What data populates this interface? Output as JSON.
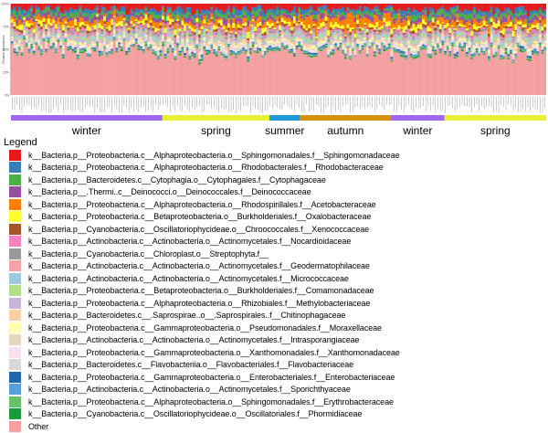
{
  "chart_data": {
    "type": "bar",
    "stacked": true,
    "percent": true,
    "ylabel": "Relative Abundance",
    "yticks": [
      "0%",
      "25%",
      "50%",
      "75%",
      "100%"
    ],
    "seasons": [
      {
        "label": "winter",
        "color": "#a366f0",
        "start": 0,
        "end": 0.283
      },
      {
        "label": "spring",
        "color": "#e8f034",
        "start": 0.283,
        "end": 0.483
      },
      {
        "label": "summer",
        "color": "#1e9bd6",
        "start": 0.483,
        "end": 0.54
      },
      {
        "label": "autumn",
        "color": "#d4920f",
        "start": 0.54,
        "end": 0.71
      },
      {
        "label": "winter",
        "color": "#a366f0",
        "start": 0.71,
        "end": 0.81
      },
      {
        "label": "spring",
        "color": "#e8f034",
        "start": 0.81,
        "end": 1.0
      }
    ],
    "series": [
      {
        "name": "k__Bacteria.p__Proteobacteria.c__Alphaproteobacteria.o__Sphingomonadales.f__Sphingomonadaceae",
        "color": "#e41a1c",
        "mean": 0.06
      },
      {
        "name": "k__Bacteria.p__Proteobacteria.c__Alphaproteobacteria.o__Rhodobacterales.f__Rhodobacteraceae",
        "color": "#377eb8",
        "mean": 0.035
      },
      {
        "name": "k__Bacteria.p__Bacteroidetes.c__Cytophagia.o__Cytophagales.f__Cytophagaceae",
        "color": "#4daf4a",
        "mean": 0.035
      },
      {
        "name": "k__Bacteria.p__.Thermi..c__Deinococci.o__Deinococcales.f__Deinococcaceae",
        "color": "#984ea3",
        "mean": 0.035
      },
      {
        "name": "k__Bacteria.p__Proteobacteria.c__Alphaproteobacteria.o__Rhodospirillales.f__Acetobacteraceae",
        "color": "#ff7f00",
        "mean": 0.04
      },
      {
        "name": "k__Bacteria.p__Proteobacteria.c__Betaproteobacteria.o__Burkholderiales.f__Oxalobacteraceae",
        "color": "#ffff33",
        "mean": 0.035
      },
      {
        "name": "k__Bacteria.p__Cyanobacteria.c__Oscillatoriophycideae.o__Chroococcales.f__Xenococcaceae",
        "color": "#a65628",
        "mean": 0.02
      },
      {
        "name": "k__Bacteria.p__Actinobacteria.c__Actinobacteria.o__Actinomycetales.f__Nocardioidaceae",
        "color": "#f781bf",
        "mean": 0.02
      },
      {
        "name": "k__Bacteria.p__Cyanobacteria.c__Chloroplast.o__Streptophyta.f__",
        "color": "#999999",
        "mean": 0.02
      },
      {
        "name": "k__Bacteria.p__Actinobacteria.c__Actinobacteria.o__Actinomycetales.f__Geodermatophilaceae",
        "color": "#f4a3a8",
        "mean": 0.02
      },
      {
        "name": "k__Bacteria.p__Actinobacteria.c__Actinobacteria.o__Actinomycetales.f__Micrococcaceae",
        "color": "#9ec9e2",
        "mean": 0.02
      },
      {
        "name": "k__Bacteria.p__Proteobacteria.c__Betaproteobacteria.o__Burkholderiales.f__Comamonadaceae",
        "color": "#b3de8b",
        "mean": 0.02
      },
      {
        "name": "k__Bacteria.p__Proteobacteria.c__Alphaproteobacteria.o__Rhizobiales.f__Methylobacteriaceae",
        "color": "#cbb4dc",
        "mean": 0.02
      },
      {
        "name": "k__Bacteria.p__Bacteroidetes.c__.Saprospirae..o__.Saprospirales..f__Chitinophagaceae",
        "color": "#fdd0a2",
        "mean": 0.02
      },
      {
        "name": "k__Bacteria.p__Proteobacteria.c__Gammaproteobacteria.o__Pseudomonadales.f__Moraxellaceae",
        "color": "#ffffb3",
        "mean": 0.015
      },
      {
        "name": "k__Bacteria.p__Actinobacteria.c__Actinobacteria.o__Actinomycetales.f__Intrasporangiaceae",
        "color": "#e5d8bd",
        "mean": 0.015
      },
      {
        "name": "k__Bacteria.p__Proteobacteria.c__Gammaproteobacteria.o__Xanthomonadales.f__Xanthomonadaceae",
        "color": "#fde0ef",
        "mean": 0.015
      },
      {
        "name": "k__Bacteria.p__Bacteroidetes.c__Flavobacteriia.o__Flavobacteriales.f__Flavobacteriaceae",
        "color": "#d9d9d9",
        "mean": 0.015
      },
      {
        "name": "k__Bacteria.p__Proteobacteria.c__Gammaproteobacteria.o__Enterobacteriales.f__Enterobacteriaceae",
        "color": "#2166ac",
        "mean": 0.01
      },
      {
        "name": "k__Bacteria.p__Actinobacteria.c__Actinobacteria.o__Actinomycetales.f__Sporichthyaceae",
        "color": "#5aa0d8",
        "mean": 0.01
      },
      {
        "name": "k__Bacteria.p__Proteobacteria.c__Alphaproteobacteria.o__Sphingomonadales.f__Erythrobacteraceae",
        "color": "#66c266",
        "mean": 0.01
      },
      {
        "name": "k__Bacteria.p__Cyanobacteria.c__Oscillatoriophycideae.o__Oscillatoriales.f__Phormidiaceae",
        "color": "#1a9c3a",
        "mean": 0.01
      },
      {
        "name": "Other",
        "color": "#f4a0a0",
        "mean": 0.52
      }
    ],
    "legend_title": "Legend",
    "legend_position": "bottom",
    "n_samples": 220
  }
}
